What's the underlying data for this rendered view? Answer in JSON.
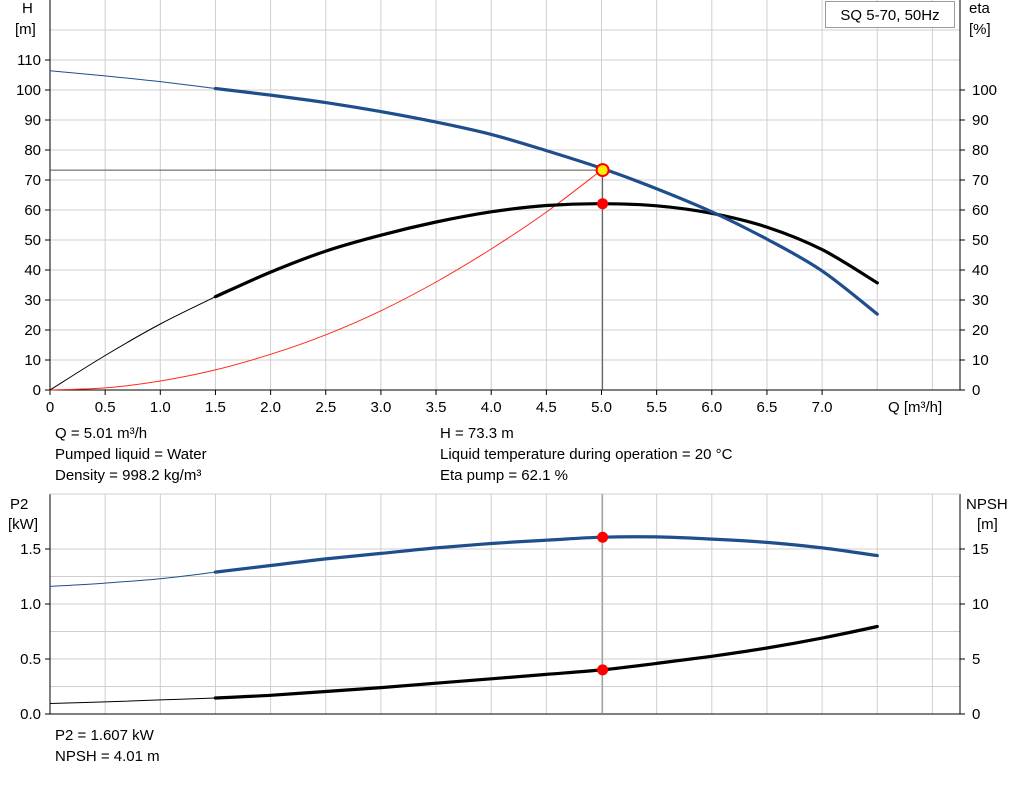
{
  "chart_data": [
    {
      "type": "line",
      "title": "SQ 5-70, 50Hz",
      "xlabel": "Q [m³/h]",
      "ylabel_left": [
        "H",
        "[m]"
      ],
      "ylabel_right": [
        "eta",
        "[%]"
      ],
      "xlim": [
        0,
        8
      ],
      "ylim_left": [
        0,
        110
      ],
      "ylim_right": [
        0,
        100
      ],
      "x_ticks": [
        "0",
        "0.5",
        "1.0",
        "1.5",
        "2.0",
        "2.5",
        "3.0",
        "3.5",
        "4.0",
        "4.5",
        "5.0",
        "5.5",
        "6.0",
        "6.5",
        "7.0"
      ],
      "y_ticks_left": [
        "0",
        "10",
        "20",
        "30",
        "40",
        "50",
        "60",
        "70",
        "80",
        "90",
        "100",
        "110"
      ],
      "y_ticks_right": [
        "0",
        "10",
        "20",
        "30",
        "40",
        "50",
        "60",
        "70",
        "80",
        "90",
        "100"
      ],
      "grid": true,
      "series": [
        {
          "color": "#1f4e8c",
          "axis": "left",
          "points": [
            [
              0,
              106.4
            ],
            [
              0.5,
              104.7
            ],
            [
              1.0,
              102.8
            ],
            [
              1.5,
              100.5
            ],
            [
              2.0,
              98.3
            ],
            [
              2.5,
              95.8
            ],
            [
              3.0,
              92.8
            ],
            [
              3.5,
              89.3
            ],
            [
              4.0,
              85.2
            ],
            [
              4.5,
              79.8
            ],
            [
              5.0,
              73.9
            ],
            [
              5.5,
              67.1
            ],
            [
              6.0,
              59.4
            ],
            [
              6.5,
              50.3
            ],
            [
              7.0,
              39.7
            ],
            [
              7.5,
              25.3
            ]
          ],
          "extrapolated_below": 1.5
        },
        {
          "color": "#000000",
          "axis": "right",
          "points": [
            [
              0,
              0
            ],
            [
              0.5,
              11.5
            ],
            [
              1.0,
              22.0
            ],
            [
              1.5,
              31.1
            ],
            [
              2.0,
              39.3
            ],
            [
              2.5,
              46.3
            ],
            [
              3.0,
              51.6
            ],
            [
              3.5,
              56.0
            ],
            [
              4.0,
              59.4
            ],
            [
              4.5,
              61.5
            ],
            [
              5.0,
              62.1
            ],
            [
              5.5,
              61.4
            ],
            [
              6.0,
              58.9
            ],
            [
              6.5,
              54.3
            ],
            [
              7.0,
              46.8
            ],
            [
              7.5,
              35.7
            ]
          ],
          "extrapolated_below": 1.5
        },
        {
          "color": "#ff2a1a",
          "axis": "left",
          "points": [
            [
              0,
              0
            ],
            [
              0.5,
              0.7
            ],
            [
              1.0,
              3.0
            ],
            [
              1.5,
              6.7
            ],
            [
              2.0,
              11.9
            ],
            [
              2.5,
              18.4
            ],
            [
              3.0,
              26.4
            ],
            [
              3.5,
              36.0
            ],
            [
              4.0,
              47.0
            ],
            [
              4.5,
              59.3
            ],
            [
              5.0,
              73.3
            ]
          ],
          "thin": true
        }
      ],
      "operating_point": {
        "q": 5.01,
        "h": 73.3,
        "eta": 62.1
      },
      "x_axis_title_suffix": "Q [m³/h]"
    },
    {
      "type": "line",
      "ylabel_left": [
        "P2",
        "[kW]"
      ],
      "ylabel_right": [
        "NPSH",
        "[m]"
      ],
      "xlim": [
        0,
        8
      ],
      "ylim_left": [
        0,
        1.75
      ],
      "ylim_right": [
        0,
        17.5
      ],
      "y_ticks_left": [
        "0.0",
        "0.5",
        "1.0",
        "1.5"
      ],
      "y_ticks_right": [
        "0",
        "5",
        "10",
        "15"
      ],
      "grid": true,
      "series": [
        {
          "color": "#1f4e8c",
          "axis": "left",
          "points": [
            [
              0,
              1.16
            ],
            [
              0.5,
              1.19
            ],
            [
              1.0,
              1.23
            ],
            [
              1.5,
              1.29
            ],
            [
              2.0,
              1.35
            ],
            [
              2.5,
              1.41
            ],
            [
              3.0,
              1.46
            ],
            [
              3.5,
              1.51
            ],
            [
              4.0,
              1.55
            ],
            [
              4.5,
              1.58
            ],
            [
              5.0,
              1.607
            ],
            [
              5.5,
              1.61
            ],
            [
              6.0,
              1.59
            ],
            [
              6.5,
              1.56
            ],
            [
              7.0,
              1.51
            ],
            [
              7.5,
              1.44
            ]
          ],
          "extrapolated_below": 1.5
        },
        {
          "color": "#000000",
          "axis": "right",
          "points": [
            [
              0,
              0.95
            ],
            [
              0.5,
              1.1
            ],
            [
              1.0,
              1.28
            ],
            [
              1.5,
              1.45
            ],
            [
              2.0,
              1.7
            ],
            [
              2.5,
              2.05
            ],
            [
              3.0,
              2.4
            ],
            [
              3.5,
              2.8
            ],
            [
              4.0,
              3.2
            ],
            [
              4.5,
              3.6
            ],
            [
              5.0,
              4.01
            ],
            [
              5.5,
              4.6
            ],
            [
              6.0,
              5.25
            ],
            [
              6.5,
              6.0
            ],
            [
              7.0,
              6.9
            ],
            [
              7.5,
              7.95
            ]
          ],
          "extrapolated_below": 1.5
        }
      ],
      "operating_point": {
        "q": 5.01,
        "p2": 1.607,
        "npsh": 4.01
      }
    }
  ],
  "info_top": {
    "q": "Q = 5.01 m³/h",
    "liquid": "Pumped liquid = Water",
    "density": "Density = 998.2 kg/m³",
    "h": "H = 73.3 m",
    "temp": "Liquid temperature during operation = 20 °C",
    "eta": "Eta pump = 62.1 %"
  },
  "info_bottom": {
    "p2": "P2 = 1.607 kW",
    "npsh": "NPSH = 4.01 m"
  },
  "colors": {
    "grid": "#cfcfcf",
    "axis": "#000000",
    "head": "#1f4e8c",
    "eta": "#000000",
    "system": "#ff2a1a",
    "point": "#ff0000",
    "point_highlight": "#ffee00"
  }
}
